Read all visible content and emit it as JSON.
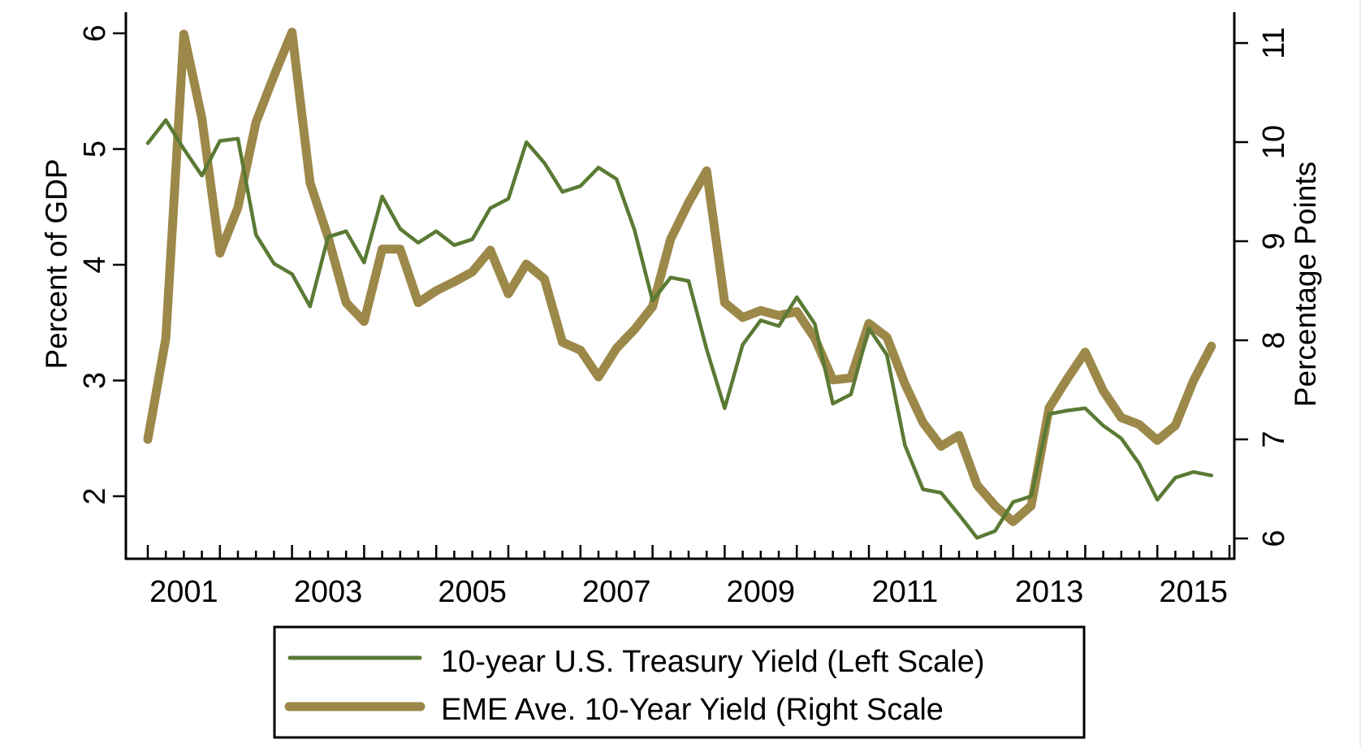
{
  "chart_data": {
    "type": "line",
    "title": "",
    "xlabel": "",
    "ylabel_left": "Percent of GDP",
    "ylabel_right": "Percentage Points",
    "x_frequency": "quarterly",
    "x_start": "2001Q1",
    "x_end": "2015Q4",
    "x_tick_labels": [
      "2001",
      "2003",
      "2005",
      "2007",
      "2009",
      "2011",
      "2013",
      "2015"
    ],
    "y_left_ticks": [
      "2",
      "3",
      "4",
      "5",
      "6"
    ],
    "y_right_ticks": [
      "6",
      "7",
      "8",
      "9",
      "10",
      "11"
    ],
    "y_left_range": [
      1.5,
      6.2
    ],
    "y_right_range": [
      5.8,
      11.3
    ],
    "grid": false,
    "legend_position": "bottom",
    "series": [
      {
        "name": "10-year U.S. Treasury Yield (Left Scale)",
        "axis": "left",
        "color": "#5a7a34",
        "values": [
          5.05,
          5.25,
          5.0,
          4.77,
          5.07,
          5.09,
          4.26,
          4.01,
          3.92,
          3.64,
          4.24,
          4.29,
          4.02,
          4.59,
          4.31,
          4.19,
          4.29,
          4.17,
          4.22,
          4.49,
          4.57,
          5.06,
          4.88,
          4.63,
          4.68,
          4.84,
          4.74,
          4.3,
          3.69,
          3.89,
          3.86,
          3.27,
          2.76,
          3.31,
          3.52,
          3.47,
          3.72,
          3.49,
          2.8,
          2.88,
          3.45,
          3.22,
          2.44,
          2.06,
          2.03,
          1.84,
          1.64,
          1.7,
          1.95,
          2.0,
          2.71,
          2.74,
          2.76,
          2.61,
          2.5,
          2.28,
          1.97,
          2.16,
          2.21,
          2.18
        ]
      },
      {
        "name": "EME Ave. 10-Year Yield (Right Scale",
        "axis": "right",
        "color": "#9c8849",
        "values": [
          7.0,
          8.02,
          11.09,
          10.24,
          8.88,
          9.34,
          10.2,
          10.67,
          11.11,
          9.59,
          9.04,
          8.38,
          8.19,
          8.92,
          8.92,
          8.38,
          8.5,
          8.59,
          8.69,
          8.91,
          8.47,
          8.77,
          8.62,
          7.98,
          7.9,
          7.63,
          7.92,
          8.11,
          8.34,
          9.02,
          9.39,
          9.71,
          8.38,
          8.23,
          8.3,
          8.25,
          8.29,
          8.02,
          7.6,
          7.62,
          8.17,
          8.03,
          7.56,
          7.17,
          6.93,
          7.04,
          6.54,
          6.33,
          6.17,
          6.33,
          7.32,
          7.61,
          7.88,
          7.49,
          7.22,
          7.15,
          6.99,
          7.14,
          7.59,
          7.94
        ]
      }
    ]
  },
  "legend": {
    "items": [
      {
        "label": "10-year U.S. Treasury Yield (Left Scale)",
        "color": "#5a7a34",
        "style": "thin"
      },
      {
        "label": "EME Ave. 10-Year Yield (Right Scale",
        "color": "#9c8849",
        "style": "thick"
      }
    ]
  }
}
